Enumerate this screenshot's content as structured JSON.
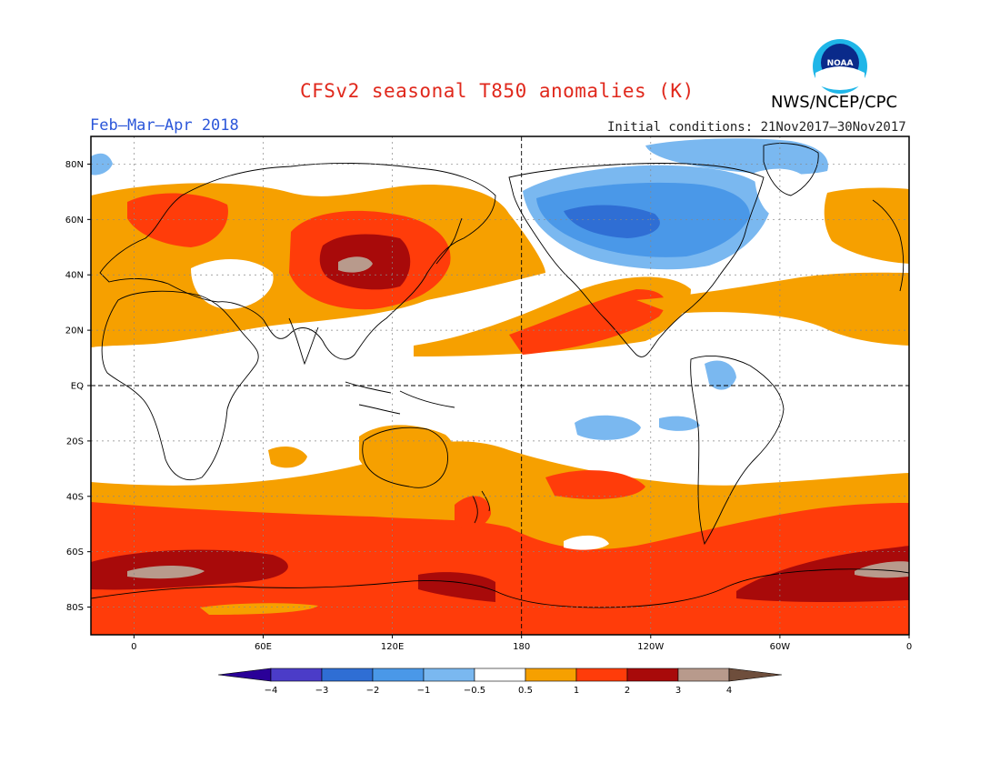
{
  "title": "CFSv2 seasonal T850 anomalies (K)",
  "agency": "NWS/NCEP/CPC",
  "logo_text": "NOAA",
  "period": "Feb–Mar–Apr 2018",
  "initial_conditions": "Initial conditions: 21Nov2017–30Nov2017",
  "map": {
    "projection": "equirectangular",
    "lon_range": [
      -20,
      360
    ],
    "lat_range": [
      -90,
      90
    ],
    "lat_ticks": [
      {
        "lat": 80,
        "label": "80N"
      },
      {
        "lat": 60,
        "label": "60N"
      },
      {
        "lat": 40,
        "label": "40N"
      },
      {
        "lat": 20,
        "label": "20N"
      },
      {
        "lat": 0,
        "label": "EQ"
      },
      {
        "lat": -20,
        "label": "20S"
      },
      {
        "lat": -40,
        "label": "40S"
      },
      {
        "lat": -60,
        "label": "60S"
      },
      {
        "lat": -80,
        "label": "80S"
      }
    ],
    "lon_ticks": [
      {
        "lon": 0,
        "label": "0"
      },
      {
        "lon": 60,
        "label": "60E"
      },
      {
        "lon": 120,
        "label": "120E"
      },
      {
        "lon": 180,
        "label": "180"
      },
      {
        "lon": 240,
        "label": "120W"
      },
      {
        "lon": 300,
        "label": "60W"
      },
      {
        "lon": 360,
        "label": "0"
      }
    ],
    "colors": {
      "n4": "#2a0098",
      "n3": "#4b3cc8",
      "n2": "#2f6ed4",
      "n1": "#4a98e8",
      "n05": "#7ab8f0",
      "white": "#ffffff",
      "p05": "#f6a000",
      "p1": "#ff3c0a",
      "p2": "#a80a0a",
      "p3": "#b89a8c",
      "p4": "#6e4e3c"
    }
  },
  "colorbar": {
    "labels": [
      "−4",
      "−3",
      "−2",
      "−1",
      "−0.5",
      "0.5",
      "1",
      "2",
      "3",
      "4"
    ],
    "colors": [
      "#2a0098",
      "#4b3cc8",
      "#2f6ed4",
      "#4a98e8",
      "#7ab8f0",
      "#ffffff",
      "#f6a000",
      "#ff3c0a",
      "#a80a0a",
      "#b89a8c",
      "#6e4e3c"
    ]
  }
}
